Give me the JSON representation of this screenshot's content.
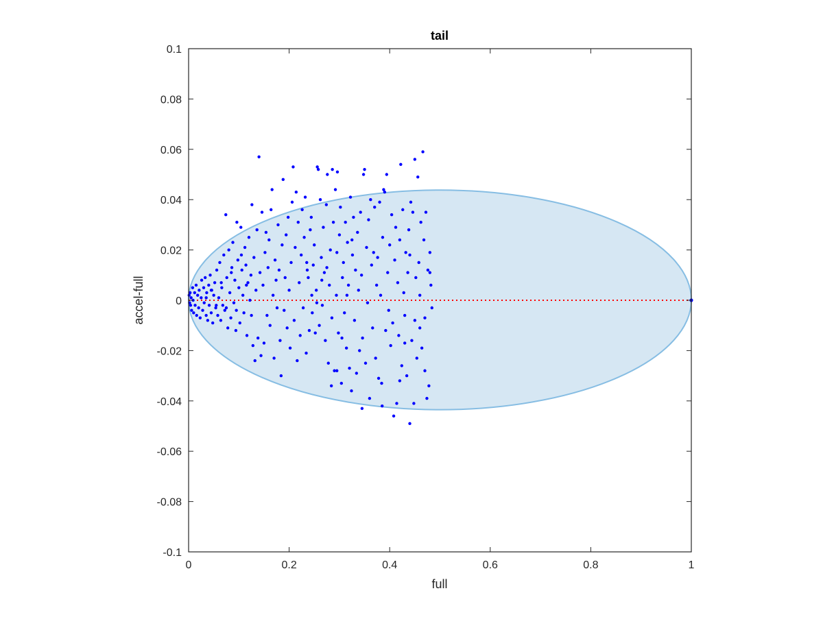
{
  "chart_data": {
    "type": "scatter",
    "title": "tail",
    "xlabel": "full",
    "ylabel": "accel-full",
    "xlim": [
      0,
      1
    ],
    "ylim": [
      -0.1,
      0.1
    ],
    "xticks": [
      0,
      0.2,
      0.4,
      0.6,
      0.8,
      1
    ],
    "xtick_labels": [
      "0",
      "0.2",
      "0.4",
      "0.6",
      "0.8",
      "1"
    ],
    "yticks": [
      -0.1,
      -0.08,
      -0.06,
      -0.04,
      -0.02,
      0,
      0.02,
      0.04,
      0.06,
      0.08,
      0.1
    ],
    "ytick_labels": [
      "-0.1",
      "-0.08",
      "-0.06",
      "-0.04",
      "-0.02",
      "0",
      "0.02",
      "0.04",
      "0.06",
      "0.08",
      "0.1"
    ],
    "grid": false,
    "colors": {
      "points": "#0000ff",
      "ellipse_fill": "#d6e7f3",
      "ellipse_edge": "#86bde3",
      "zero_line": "#ff0000",
      "axes": "#262626"
    },
    "ellipse": {
      "x_range": [
        0,
        1
      ],
      "y_range": [
        -0.0435,
        0.0438
      ]
    },
    "zero_line": {
      "y": 0,
      "x_range": [
        0,
        1
      ],
      "style": "dotted"
    },
    "points": [
      [
        0.001,
        0.002
      ],
      [
        0.002,
        -0.001
      ],
      [
        0.003,
        0.003
      ],
      [
        0.004,
        -0.002
      ],
      [
        0.005,
        0.001
      ],
      [
        0.006,
        -0.004
      ],
      [
        0.008,
        0.005
      ],
      [
        0.009,
        0.0
      ],
      [
        0.01,
        -0.005
      ],
      [
        0.012,
        0.003
      ],
      [
        0.013,
        -0.002
      ],
      [
        0.015,
        0.006
      ],
      [
        0.016,
        -0.006
      ],
      [
        0.018,
        0.002
      ],
      [
        0.02,
        -0.003
      ],
      [
        0.021,
        0.004
      ],
      [
        0.023,
        -0.007
      ],
      [
        0.025,
        0.001
      ],
      [
        0.026,
        0.008
      ],
      [
        0.028,
        -0.004
      ],
      [
        0.03,
        0.005
      ],
      [
        0.031,
        -0.001
      ],
      [
        0.033,
        0.009
      ],
      [
        0.035,
        -0.006
      ],
      [
        0.036,
        0.003
      ],
      [
        0.038,
        -0.008
      ],
      [
        0.04,
        0.006
      ],
      [
        0.041,
        -0.002
      ],
      [
        0.043,
        0.01
      ],
      [
        0.045,
        -0.005
      ],
      [
        0.046,
        0.004
      ],
      [
        0.048,
        -0.009
      ],
      [
        0.05,
        0.002
      ],
      [
        0.052,
        0.007
      ],
      [
        0.054,
        -0.003
      ],
      [
        0.056,
        0.012
      ],
      [
        0.058,
        -0.006
      ],
      [
        0.06,
        0.001
      ],
      [
        0.062,
        0.015
      ],
      [
        0.064,
        -0.008
      ],
      [
        0.066,
        0.005
      ],
      [
        0.068,
        -0.002
      ],
      [
        0.07,
        0.018
      ],
      [
        0.072,
        -0.004
      ],
      [
        0.074,
        0.034
      ],
      [
        0.076,
        0.009
      ],
      [
        0.078,
        -0.011
      ],
      [
        0.08,
        0.02
      ],
      [
        0.082,
        0.003
      ],
      [
        0.084,
        -0.007
      ],
      [
        0.086,
        0.013
      ],
      [
        0.088,
        0.023
      ],
      [
        0.09,
        -0.001
      ],
      [
        0.092,
        0.008
      ],
      [
        0.094,
        -0.012
      ],
      [
        0.096,
        0.031
      ],
      [
        0.098,
        0.016
      ],
      [
        0.1,
        0.005
      ],
      [
        0.102,
        -0.009
      ],
      [
        0.104,
        0.029
      ],
      [
        0.106,
        0.012
      ],
      [
        0.108,
        0.002
      ],
      [
        0.11,
        -0.005
      ],
      [
        0.112,
        0.021
      ],
      [
        0.114,
        0.014
      ],
      [
        0.116,
        -0.014
      ],
      [
        0.118,
        0.007
      ],
      [
        0.12,
        0.025
      ],
      [
        0.122,
        0.0
      ],
      [
        0.124,
        0.01
      ],
      [
        0.126,
        0.038
      ],
      [
        0.128,
        -0.018
      ],
      [
        0.13,
        0.017
      ],
      [
        0.132,
        -0.024
      ],
      [
        0.134,
        0.004
      ],
      [
        0.136,
        0.028
      ],
      [
        0.138,
        -0.015
      ],
      [
        0.14,
        0.057
      ],
      [
        0.142,
        0.011
      ],
      [
        0.144,
        -0.022
      ],
      [
        0.146,
        0.035
      ],
      [
        0.148,
        0.006
      ],
      [
        0.15,
        -0.017
      ],
      [
        0.152,
        0.019
      ],
      [
        0.154,
        0.027
      ],
      [
        0.156,
        -0.006
      ],
      [
        0.158,
        0.013
      ],
      [
        0.16,
        0.024
      ],
      [
        0.162,
        -0.01
      ],
      [
        0.164,
        0.036
      ],
      [
        0.166,
        0.044
      ],
      [
        0.168,
        0.002
      ],
      [
        0.17,
        -0.023
      ],
      [
        0.172,
        0.016
      ],
      [
        0.174,
        0.008
      ],
      [
        0.176,
        -0.003
      ],
      [
        0.178,
        0.03
      ],
      [
        0.18,
        0.012
      ],
      [
        0.182,
        -0.016
      ],
      [
        0.184,
        -0.03
      ],
      [
        0.186,
        0.022
      ],
      [
        0.188,
        0.048
      ],
      [
        0.19,
        -0.004
      ],
      [
        0.192,
        0.009
      ],
      [
        0.194,
        0.026
      ],
      [
        0.196,
        -0.011
      ],
      [
        0.198,
        0.033
      ],
      [
        0.2,
        0.004
      ],
      [
        0.202,
        -0.019
      ],
      [
        0.204,
        0.015
      ],
      [
        0.206,
        0.039
      ],
      [
        0.208,
        0.053
      ],
      [
        0.21,
        -0.008
      ],
      [
        0.212,
        0.021
      ],
      [
        0.214,
        0.043
      ],
      [
        0.216,
        -0.024
      ],
      [
        0.218,
        0.031
      ],
      [
        0.22,
        0.007
      ],
      [
        0.222,
        -0.014
      ],
      [
        0.224,
        0.018
      ],
      [
        0.226,
        0.036
      ],
      [
        0.228,
        -0.003
      ],
      [
        0.23,
        0.025
      ],
      [
        0.232,
        0.041
      ],
      [
        0.234,
        -0.021
      ],
      [
        0.236,
        0.012
      ],
      [
        0.238,
        0.009
      ],
      [
        0.24,
        -0.012
      ],
      [
        0.242,
        0.028
      ],
      [
        0.244,
        0.033
      ],
      [
        0.246,
        -0.005
      ],
      [
        0.248,
        0.014
      ],
      [
        0.25,
        0.022
      ],
      [
        0.252,
        -0.013
      ],
      [
        0.254,
        0.004
      ],
      [
        0.256,
        0.053
      ],
      [
        0.258,
        0.052
      ],
      [
        0.26,
        -0.01
      ],
      [
        0.262,
        0.04
      ],
      [
        0.264,
        0.017
      ],
      [
        0.266,
        -0.002
      ],
      [
        0.268,
        0.029
      ],
      [
        0.27,
        0.011
      ],
      [
        0.272,
        -0.016
      ],
      [
        0.274,
        0.038
      ],
      [
        0.276,
        0.05
      ],
      [
        0.278,
        -0.025
      ],
      [
        0.28,
        0.006
      ],
      [
        0.282,
        0.02
      ],
      [
        0.284,
        -0.034
      ],
      [
        0.286,
        0.052
      ],
      [
        0.288,
        0.031
      ],
      [
        0.29,
        -0.028
      ],
      [
        0.292,
        0.044
      ],
      [
        0.294,
        0.002
      ],
      [
        0.296,
        0.051
      ],
      [
        0.298,
        -0.013
      ],
      [
        0.3,
        0.026
      ],
      [
        0.302,
        0.037
      ],
      [
        0.304,
        -0.033
      ],
      [
        0.306,
        0.009
      ],
      [
        0.308,
        0.015
      ],
      [
        0.31,
        -0.005
      ],
      [
        0.312,
        0.031
      ],
      [
        0.314,
        -0.019
      ],
      [
        0.316,
        0.023
      ],
      [
        0.318,
        0.006
      ],
      [
        0.32,
        -0.027
      ],
      [
        0.322,
        0.041
      ],
      [
        0.324,
        -0.036
      ],
      [
        0.326,
        0.018
      ],
      [
        0.328,
        0.033
      ],
      [
        0.33,
        -0.008
      ],
      [
        0.332,
        0.012
      ],
      [
        0.334,
        -0.029
      ],
      [
        0.336,
        0.027
      ],
      [
        0.338,
        0.004
      ],
      [
        0.34,
        -0.02
      ],
      [
        0.342,
        0.035
      ],
      [
        0.344,
        0.01
      ],
      [
        0.346,
        -0.015
      ],
      [
        0.348,
        0.05
      ],
      [
        0.35,
        0.052
      ],
      [
        0.352,
        -0.025
      ],
      [
        0.354,
        0.021
      ],
      [
        0.356,
        -0.001
      ],
      [
        0.358,
        0.032
      ],
      [
        0.36,
        -0.039
      ],
      [
        0.362,
        0.04
      ],
      [
        0.364,
        0.014
      ],
      [
        0.366,
        -0.011
      ],
      [
        0.368,
        0.019
      ],
      [
        0.37,
        0.037
      ],
      [
        0.372,
        -0.023
      ],
      [
        0.374,
        0.006
      ],
      [
        0.376,
        0.017
      ],
      [
        0.378,
        -0.031
      ],
      [
        0.38,
        0.039
      ],
      [
        0.382,
        0.002
      ],
      [
        0.384,
        -0.033
      ],
      [
        0.386,
        0.025
      ],
      [
        0.388,
        0.044
      ],
      [
        0.39,
        0.043
      ],
      [
        0.392,
        -0.012
      ],
      [
        0.394,
        0.05
      ],
      [
        0.396,
        0.011
      ],
      [
        0.398,
        -0.004
      ],
      [
        0.4,
        0.022
      ],
      [
        0.402,
        -0.018
      ],
      [
        0.404,
        0.034
      ],
      [
        0.406,
        -0.009
      ],
      [
        0.408,
        -0.046
      ],
      [
        0.41,
        0.016
      ],
      [
        0.412,
        0.029
      ],
      [
        0.414,
        -0.041
      ],
      [
        0.416,
        0.007
      ],
      [
        0.418,
        -0.014
      ],
      [
        0.42,
        0.024
      ],
      [
        0.422,
        0.054
      ],
      [
        0.424,
        -0.026
      ],
      [
        0.426,
        0.036
      ],
      [
        0.428,
        0.003
      ],
      [
        0.43,
        -0.006
      ],
      [
        0.432,
        0.019
      ],
      [
        0.434,
        -0.03
      ],
      [
        0.436,
        0.011
      ],
      [
        0.438,
        0.028
      ],
      [
        0.44,
        -0.049
      ],
      [
        0.442,
        0.039
      ],
      [
        0.444,
        -0.016
      ],
      [
        0.446,
        0.035
      ],
      [
        0.448,
        -0.041
      ],
      [
        0.45,
        0.056
      ],
      [
        0.452,
        0.009
      ],
      [
        0.454,
        -0.023
      ],
      [
        0.456,
        0.049
      ],
      [
        0.458,
        0.015
      ],
      [
        0.46,
        -0.011
      ],
      [
        0.462,
        0.031
      ],
      [
        0.464,
        -0.019
      ],
      [
        0.466,
        0.059
      ],
      [
        0.468,
        0.024
      ],
      [
        0.47,
        -0.028
      ],
      [
        0.472,
        0.035
      ],
      [
        0.474,
        -0.039
      ],
      [
        0.476,
        0.012
      ],
      [
        0.478,
        -0.034
      ],
      [
        0.48,
        0.019
      ],
      [
        0.482,
        0.006
      ],
      [
        0.484,
        -0.003
      ],
      [
        0.42,
        -0.032
      ],
      [
        0.43,
        -0.017
      ],
      [
        0.44,
        0.018
      ],
      [
        0.45,
        -0.008
      ],
      [
        0.46,
        0.002
      ],
      [
        0.47,
        -0.007
      ],
      [
        0.48,
        0.011
      ],
      [
        0.345,
        -0.043
      ],
      [
        0.295,
        -0.028
      ],
      [
        0.385,
        -0.042
      ],
      [
        0.235,
        0.015
      ],
      [
        0.245,
        0.002
      ],
      [
        0.255,
        -0.001
      ],
      [
        0.265,
        0.008
      ],
      [
        0.275,
        0.013
      ],
      [
        0.285,
        -0.007
      ],
      [
        0.295,
        0.019
      ],
      [
        0.305,
        -0.015
      ],
      [
        0.315,
        0.002
      ],
      [
        0.325,
        0.024
      ],
      [
        0.125,
        -0.006
      ],
      [
        0.115,
        0.006
      ],
      [
        0.105,
        0.018
      ],
      [
        0.095,
        -0.004
      ],
      [
        0.085,
        0.011
      ],
      [
        0.075,
        -0.003
      ],
      [
        0.065,
        0.007
      ],
      [
        0.055,
        -0.002
      ],
      [
        0.045,
        0.004
      ],
      [
        0.035,
        0.001
      ]
    ]
  }
}
